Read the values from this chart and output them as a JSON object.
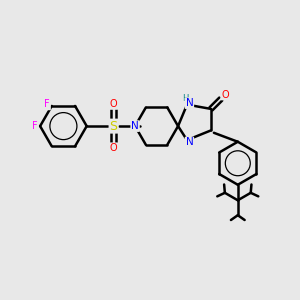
{
  "bg_color": "#e8e8e8",
  "bond_color": "#000000",
  "bond_width": 1.8,
  "atom_colors": {
    "F": "#ff00ff",
    "N": "#0000ff",
    "O": "#ff0000",
    "S": "#cccc00",
    "H": "#008080",
    "C": "#000000"
  },
  "figsize": [
    3.0,
    3.0
  ],
  "dpi": 100
}
